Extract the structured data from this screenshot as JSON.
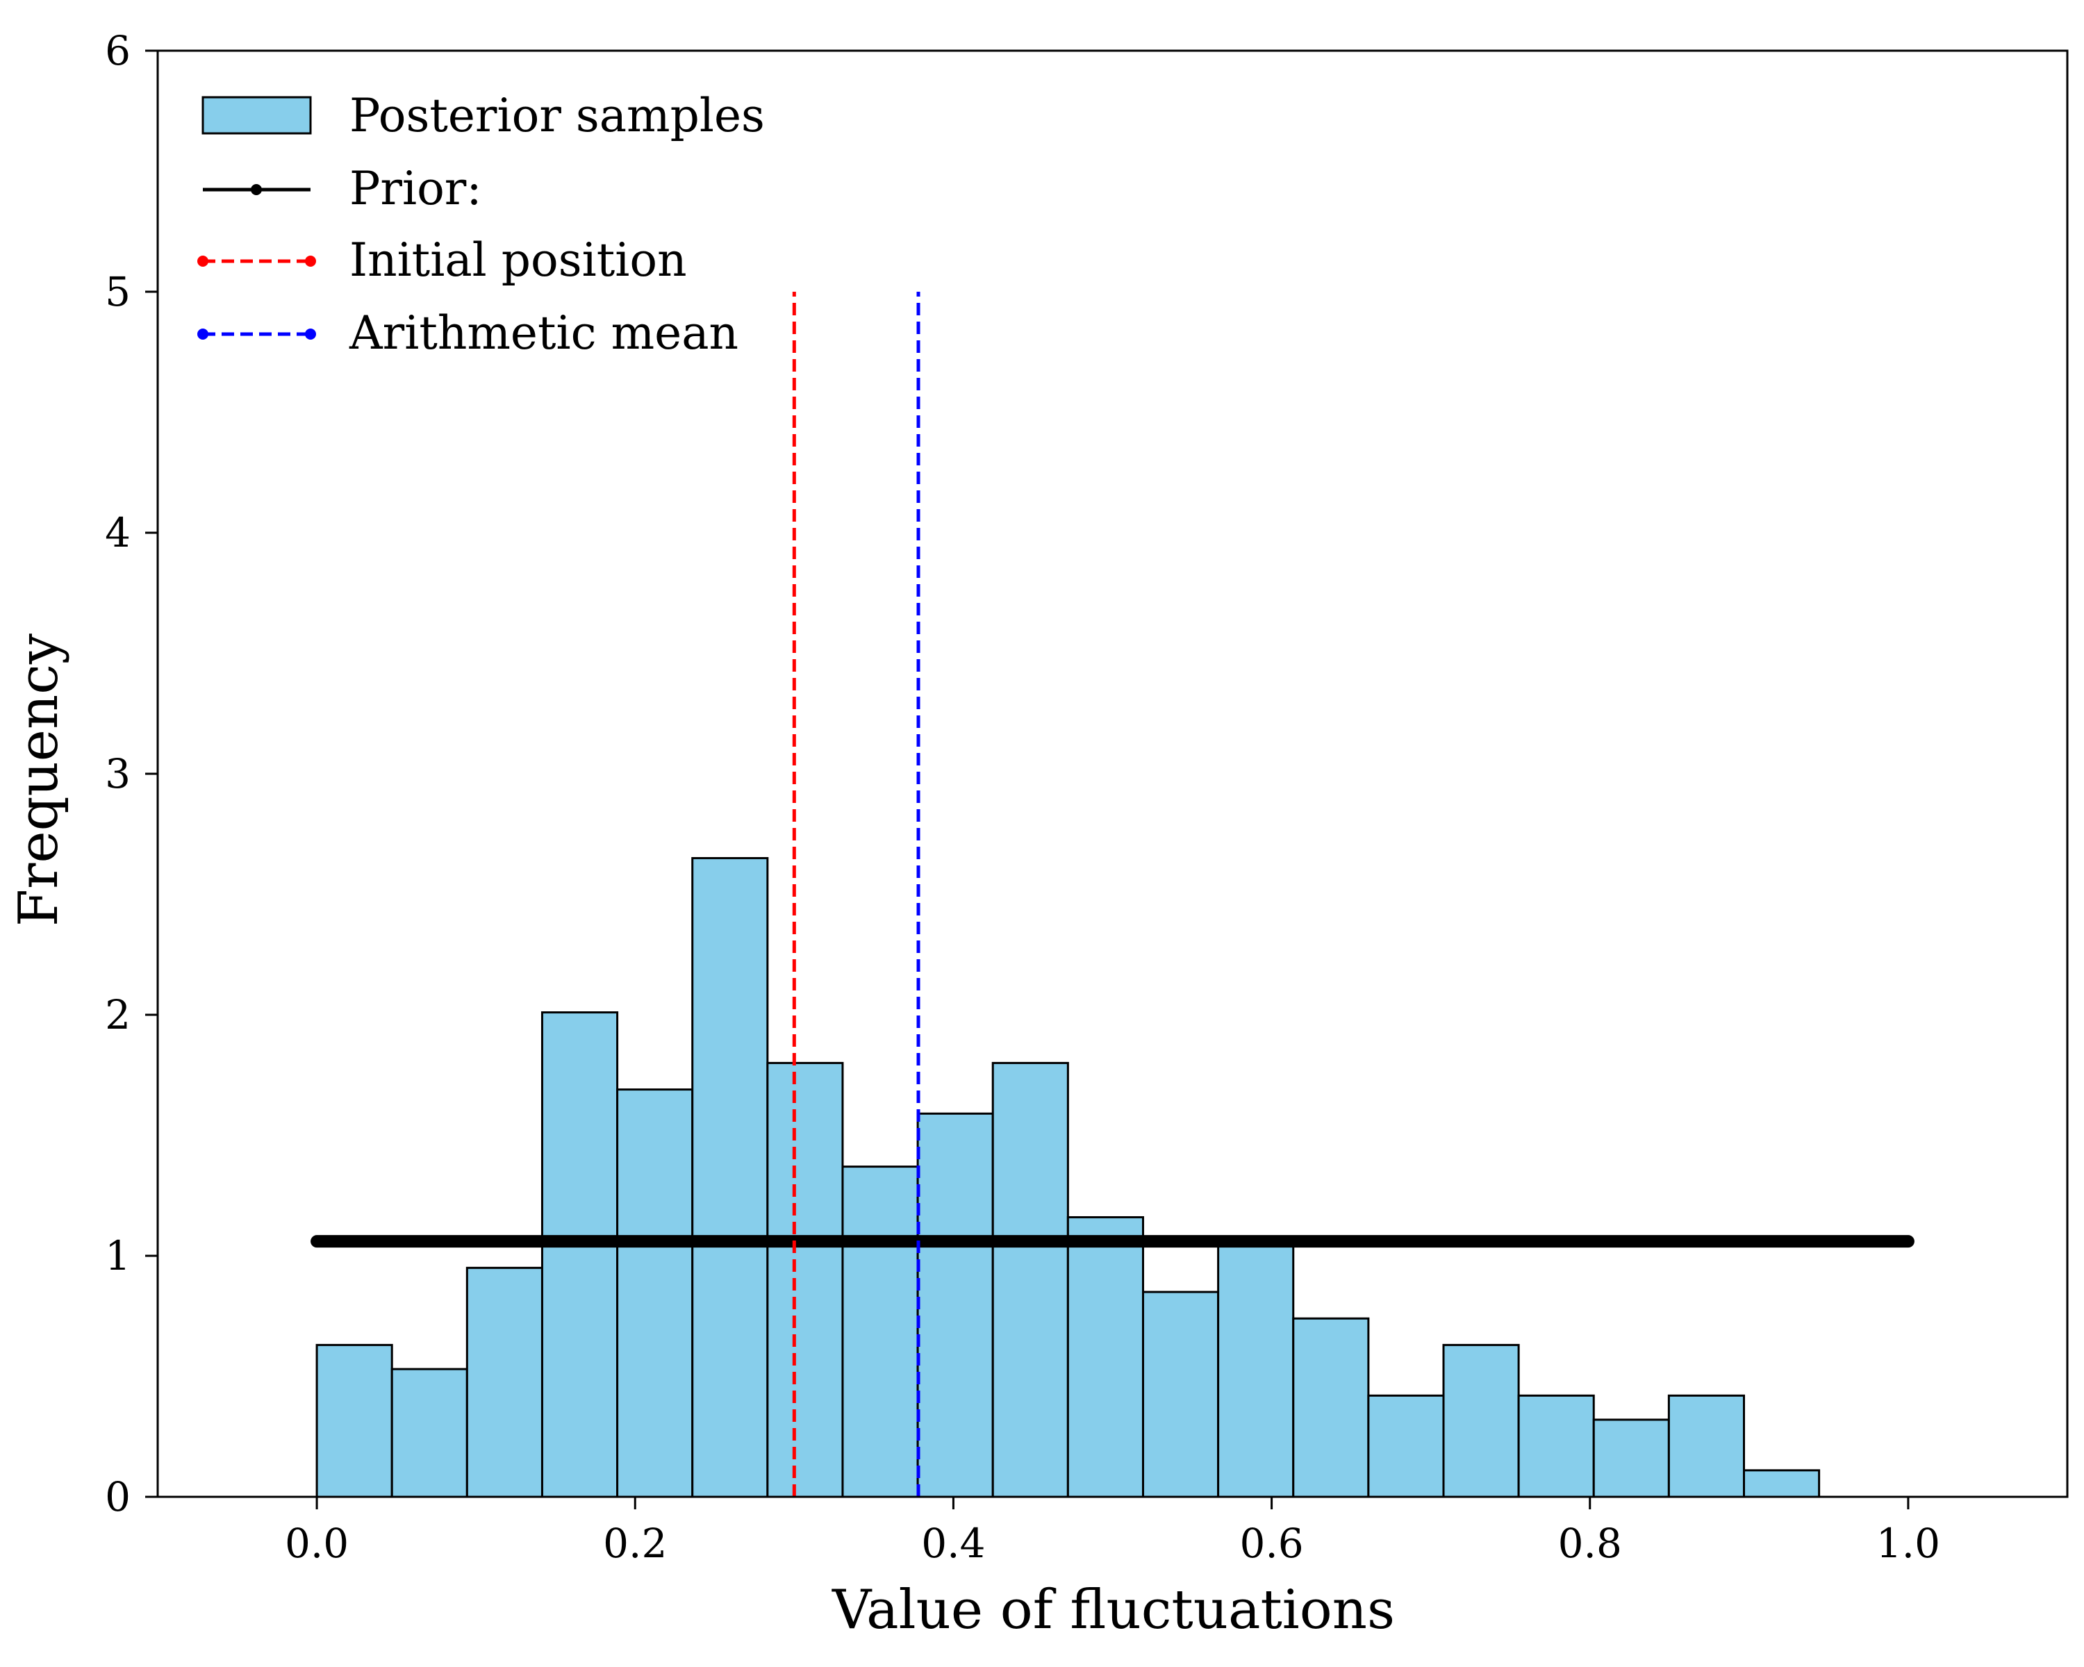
{
  "chart_data": {
    "type": "bar",
    "xlabel": "Value of fluctuations",
    "ylabel": "Frequency",
    "xlim": [
      -0.1,
      1.1
    ],
    "ylim": [
      0,
      6
    ],
    "grid": false,
    "legend_position": "top-left",
    "x_ticks": [
      0.0,
      0.2,
      0.4,
      0.6,
      0.8,
      1.0
    ],
    "x_tick_labels": [
      "0.0",
      "0.2",
      "0.4",
      "0.6",
      "0.8",
      "1.0"
    ],
    "y_ticks": [
      0,
      1,
      2,
      3,
      4,
      5,
      6
    ],
    "y_tick_labels": [
      "0",
      "1",
      "2",
      "3",
      "4",
      "5",
      "6"
    ],
    "histogram": {
      "name": "Posterior samples",
      "color": "#87CEEB",
      "edge_color": "#000000",
      "bin_edges": [
        0.0,
        0.0472,
        0.0944,
        0.1416,
        0.1888,
        0.236,
        0.2832,
        0.3304,
        0.3776,
        0.4248,
        0.472,
        0.5192,
        0.5664,
        0.6136,
        0.6608,
        0.708,
        0.7552,
        0.8024,
        0.8496,
        0.8968,
        0.944
      ],
      "values": [
        0.63,
        0.53,
        0.95,
        2.01,
        1.69,
        2.65,
        1.8,
        1.37,
        1.59,
        1.8,
        1.16,
        0.85,
        1.06,
        0.74,
        0.42,
        0.63,
        0.42,
        0.32,
        0.42,
        0.11
      ]
    },
    "prior": {
      "name": "Prior:",
      "color": "#000000",
      "x": [
        0.0,
        1.0
      ],
      "y": [
        1.06,
        1.06
      ]
    },
    "vlines": [
      {
        "name": "Initial position",
        "x": 0.3,
        "y_range": [
          0,
          5
        ],
        "color": "#ff0000",
        "style": "dashed"
      },
      {
        "name": "Arithmetic mean",
        "x": 0.378,
        "y_range": [
          0,
          5
        ],
        "color": "#0000ff",
        "style": "dashed"
      }
    ],
    "legend": [
      "Posterior samples",
      "Prior:",
      "Initial position",
      "Arithmetic mean"
    ]
  }
}
